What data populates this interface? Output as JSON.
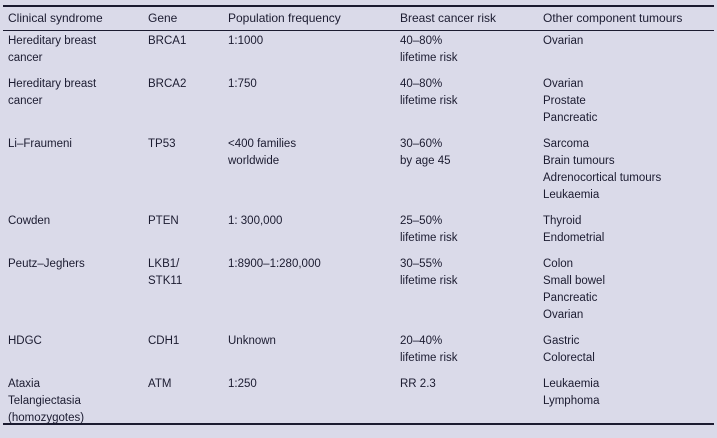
{
  "colors": {
    "background": "#dadae9",
    "text": "#1b1b30",
    "rule": "#1b1b30"
  },
  "table": {
    "columns": [
      "Clinical syndrome",
      "Gene",
      "Population frequency",
      "Breast cancer risk",
      "Other component tumours"
    ],
    "rows": [
      [
        "Hereditary breast\ncancer",
        "BRCA1",
        "1:1000",
        "40–80%\nlifetime risk",
        "Ovarian"
      ],
      [
        "Hereditary breast\ncancer",
        "BRCA2",
        "1:750",
        "40–80%\nlifetime risk",
        "Ovarian\nProstate\nPancreatic"
      ],
      [
        "Li–Fraumeni",
        "TP53",
        "<400 families\nworldwide",
        "30–60%\nby age 45",
        "Sarcoma\nBrain tumours\nAdrenocortical tumours\nLeukaemia"
      ],
      [
        "Cowden",
        "PTEN",
        "1: 300,000",
        "25–50%\nlifetime risk",
        "Thyroid\nEndometrial"
      ],
      [
        "Peutz–Jeghers",
        "LKB1/\nSTK11",
        "1:8900–1:280,000",
        "30–55%\nlifetime risk",
        "Colon\nSmall bowel\nPancreatic\nOvarian"
      ],
      [
        "HDGC",
        "CDH1",
        "Unknown",
        "20–40%\nlifetime risk",
        "Gastric\nColorectal"
      ],
      [
        "Ataxia\nTelangiectasia\n(homozygotes)",
        "ATM",
        "1:250",
        "RR 2.3",
        "Leukaemia\nLymphoma"
      ]
    ]
  }
}
